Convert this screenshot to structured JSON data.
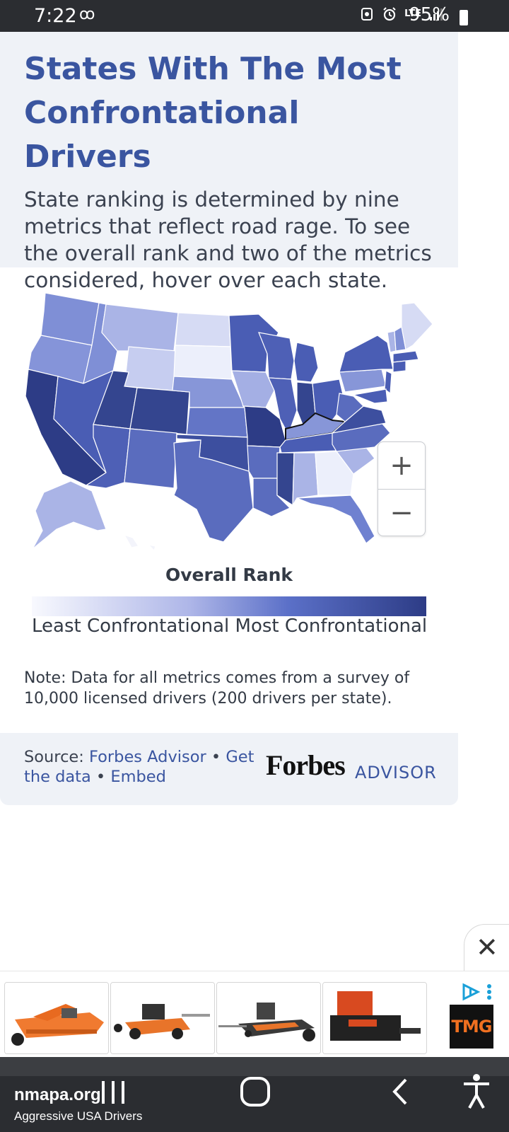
{
  "status_bar": {
    "time": "7:22",
    "voicemail_icon": "voicemail-icon",
    "network": "LTE",
    "battery": "95%"
  },
  "widget": {
    "title": "States With The Most Confrontational Drivers",
    "subtitle": "State ranking is determined by nine metrics that reflect road rage. To see the overall rank and two of the metrics considered, hover over each state.",
    "zoom_in": "+",
    "zoom_out": "−",
    "legend_title": "Overall Rank",
    "legend_low": "Least Confrontational",
    "legend_high": "Most Confrontational",
    "note": "Note: Data for all metrics comes from a survey of 10,000 licensed drivers (200 drivers per state).",
    "source_prefix": "Source:",
    "source_link": "Forbes Advisor",
    "get_data": "Get the data",
    "embed": "Embed",
    "brand_forbes": "Forbes",
    "brand_advisor": "ADVISOR",
    "colors": {
      "title": "#3a55a0",
      "panel": "#eff2f7",
      "darkest": "#2d3c86",
      "lightest": "#f8f9fe"
    }
  },
  "ad": {
    "close": "✕",
    "products": [
      "rotary-mower",
      "tow-behind-mower",
      "finish-mower",
      "mulcher-attachment"
    ],
    "logo": "TMG"
  },
  "nav": {
    "site": "nmapa.org",
    "page_title": "Aggressive USA Drivers"
  }
}
